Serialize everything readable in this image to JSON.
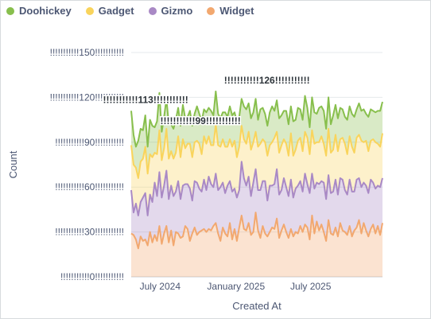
{
  "chart_data": {
    "type": "area",
    "stacked": true,
    "xlabel": "Created At",
    "ylabel": "Count",
    "ylim": [
      0,
      150
    ],
    "yticks": [
      0,
      30,
      60,
      90,
      120,
      150
    ],
    "ytick_labels": [
      "!!!!!!!!!!!0!!!!!!!!!!!",
      "!!!!!!!!!!!30!!!!!!!!!!!",
      "!!!!!!!!!!!60!!!!!!!!!!!",
      "!!!!!!!!!!!90!!!!!!!!!!!",
      "!!!!!!!!!!!120!!!!!!!!!!!",
      "!!!!!!!!!!!150!!!!!!!!!!!"
    ],
    "x_start": "2024-04-22",
    "x_end": "2025-12-22",
    "xticks": [
      "2024-07-01",
      "2025-01-01",
      "2025-07-01"
    ],
    "xtick_labels": [
      "July 2024",
      "January 2025",
      "July 2025"
    ],
    "grid": true,
    "legend": "top-left",
    "series": [
      {
        "name": "Widget",
        "color": "#f2a86f",
        "values": [
          29,
          28,
          25,
          19,
          27,
          24,
          25,
          21,
          30,
          23,
          28,
          24,
          34,
          22,
          29,
          34,
          23,
          31,
          21,
          30,
          29,
          26,
          27,
          34,
          32,
          24,
          29,
          33,
          28,
          30,
          31,
          32,
          30,
          32,
          31,
          34,
          36,
          29,
          24,
          33,
          29,
          27,
          36,
          25,
          32,
          24,
          33,
          41,
          32,
          31,
          36,
          28,
          30,
          43,
          31,
          26,
          34,
          29,
          27,
          30,
          33,
          32,
          39,
          26,
          31,
          35,
          30,
          26,
          32,
          27,
          30,
          29,
          34,
          30,
          35,
          33,
          25,
          41,
          29,
          37,
          31,
          35,
          30,
          24,
          38,
          29,
          28,
          33,
          27,
          36,
          31,
          30,
          28,
          34,
          27,
          31,
          33,
          38,
          29,
          36,
          31,
          27,
          32,
          35,
          29,
          34,
          28,
          36
        ]
      },
      {
        "name": "Gizmo",
        "color": "#a989c5",
        "values": [
          29,
          15,
          24,
          22,
          23,
          29,
          31,
          20,
          25,
          27,
          35,
          30,
          36,
          31,
          32,
          37,
          29,
          30,
          33,
          27,
          35,
          26,
          34,
          28,
          30,
          35,
          22,
          31,
          35,
          29,
          26,
          33,
          28,
          35,
          31,
          26,
          33,
          29,
          36,
          30,
          27,
          34,
          28,
          32,
          27,
          29,
          25,
          36,
          34,
          30,
          31,
          26,
          33,
          29,
          27,
          32,
          30,
          35,
          24,
          31,
          28,
          30,
          33,
          29,
          27,
          31,
          30,
          28,
          33,
          26,
          29,
          32,
          30,
          27,
          34,
          29,
          31,
          28,
          30,
          26,
          31,
          29,
          33,
          28,
          30,
          27,
          29,
          32,
          28,
          30,
          34,
          28,
          27,
          31,
          30,
          26,
          32,
          28,
          31,
          27,
          30,
          29,
          33,
          28,
          30,
          27,
          32,
          30
        ]
      },
      {
        "name": "Gadget",
        "color": "#f9d45c",
        "values": [
          30,
          32,
          24,
          25,
          27,
          26,
          31,
          28,
          27,
          30,
          20,
          28,
          28,
          25,
          25,
          28,
          27,
          23,
          25,
          26,
          30,
          28,
          31,
          24,
          27,
          30,
          29,
          26,
          28,
          30,
          25,
          29,
          31,
          27,
          26,
          28,
          33,
          30,
          27,
          29,
          31,
          26,
          28,
          30,
          32,
          27,
          29,
          24,
          26,
          28,
          30,
          31,
          27,
          25,
          29,
          31,
          28,
          26,
          30,
          27,
          29,
          31,
          25,
          28,
          30,
          26,
          29,
          27,
          31,
          28,
          26,
          30,
          29,
          27,
          28,
          31,
          26,
          29,
          30,
          27,
          28,
          30,
          26,
          29,
          31,
          27,
          28,
          30,
          29,
          26,
          28,
          31,
          27,
          29,
          30,
          26,
          28,
          29,
          31,
          27,
          30,
          28,
          26,
          29,
          31,
          28,
          27,
          30
        ]
      },
      {
        "name": "Doohickey",
        "color": "#88bf4d",
        "values": [
          23,
          20,
          14,
          25,
          22,
          19,
          21,
          18,
          23,
          21,
          17,
          22,
          25,
          19,
          21,
          20,
          23,
          18,
          20,
          22,
          19,
          21,
          23,
          20,
          18,
          22,
          21,
          19,
          23,
          20,
          22,
          18,
          21,
          19,
          23,
          20,
          22,
          21,
          19,
          18,
          23,
          20,
          22,
          21,
          19,
          24,
          20,
          18,
          22,
          23,
          19,
          21,
          20,
          22,
          18,
          23,
          21,
          19,
          20,
          22,
          24,
          18,
          21,
          23,
          20,
          19,
          22,
          21,
          18,
          23,
          20,
          22,
          19,
          21,
          24,
          20,
          18,
          22,
          21,
          19,
          23,
          20,
          22,
          18,
          21,
          19,
          23,
          20,
          22,
          21,
          19,
          18,
          23,
          20,
          22,
          24,
          19,
          21,
          20,
          22,
          18,
          23,
          21,
          19,
          20,
          22,
          24,
          21
        ]
      }
    ],
    "data_labels": [
      {
        "label": "!!!!!!!!!!!113!!!!!!!!!!!",
        "value": 113,
        "date": "2024-05-27"
      },
      {
        "label": "!!!!!!!!!!!99!!!!!!!!!!!",
        "value": 99,
        "date": "2024-10-07"
      },
      {
        "label": "!!!!!!!!!!!126!!!!!!!!!!!",
        "value": 126,
        "date": "2025-03-17"
      }
    ]
  }
}
